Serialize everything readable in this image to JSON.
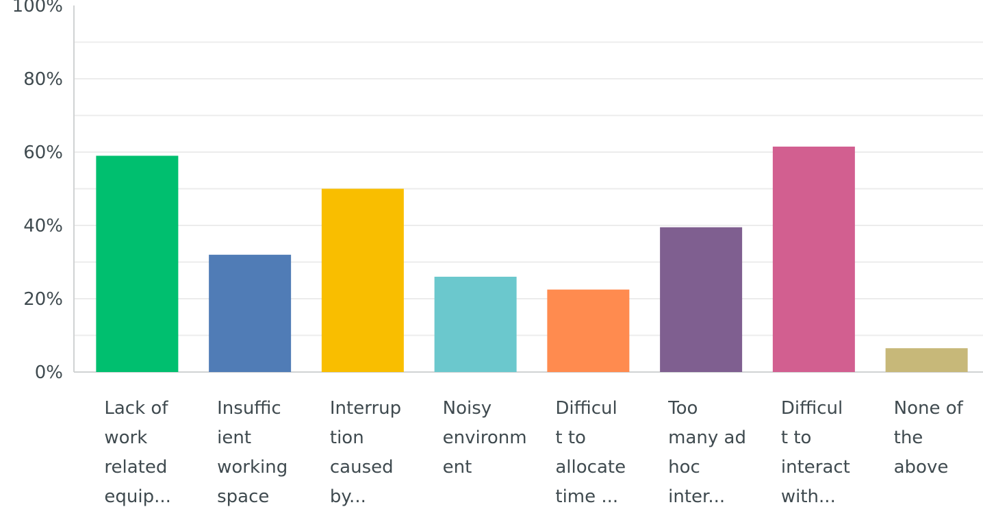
{
  "chart_data": {
    "type": "bar",
    "categories": [
      [
        "Lack of",
        "work",
        "related",
        "equip..."
      ],
      [
        "Insuffic",
        "ient",
        "working",
        "space"
      ],
      [
        "Interrup",
        "tion",
        "caused",
        "by..."
      ],
      [
        "Noisy",
        "environm",
        "ent"
      ],
      [
        "Difficul",
        "t to",
        "allocate",
        "time ..."
      ],
      [
        "Too",
        "many ad",
        "hoc",
        "inter..."
      ],
      [
        "Difficul",
        "t to",
        "interact",
        "with..."
      ],
      [
        "None of",
        "the",
        "above"
      ]
    ],
    "values": [
      59,
      32,
      50,
      26,
      22.5,
      39.5,
      61.5,
      6.5
    ],
    "colors": [
      "#00bf6f",
      "#507cb6",
      "#f9be00",
      "#6bc8cd",
      "#ff8b4f",
      "#7f5f90",
      "#d25f90",
      "#c7b879"
    ],
    "yticks": [
      "0%",
      "20%",
      "40%",
      "60%",
      "80%",
      "100%"
    ],
    "ylim": [
      0,
      100
    ],
    "grid": true,
    "title": "",
    "xlabel": "",
    "ylabel": ""
  }
}
